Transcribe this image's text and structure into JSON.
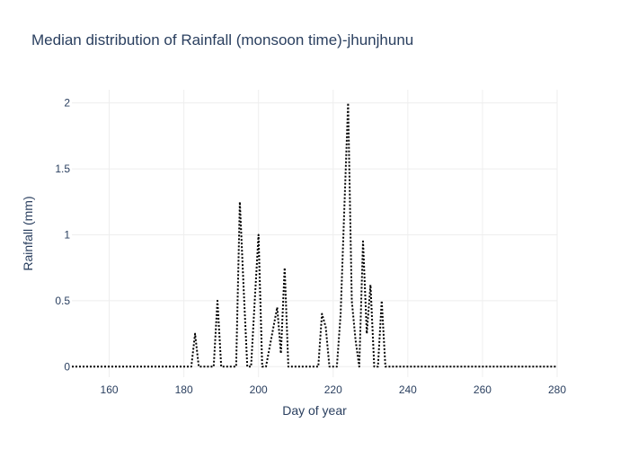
{
  "chart_data": {
    "type": "line",
    "title": "Median distribution of Rainfall (monsoon time)-jhunjhunu",
    "xlabel": "Day of year",
    "ylabel": "Rainfall (mm)",
    "xlim": [
      150,
      280
    ],
    "ylim": [
      -0.08,
      2.1
    ],
    "x_ticks": [
      {
        "value": 160,
        "label": "160"
      },
      {
        "value": 180,
        "label": "180"
      },
      {
        "value": 200,
        "label": "200"
      },
      {
        "value": 220,
        "label": "220"
      },
      {
        "value": 240,
        "label": "240"
      },
      {
        "value": 260,
        "label": "260"
      },
      {
        "value": 280,
        "label": "280"
      }
    ],
    "y_ticks": [
      {
        "value": 0,
        "label": "0"
      },
      {
        "value": 0.5,
        "label": "0.5"
      },
      {
        "value": 1,
        "label": "1"
      },
      {
        "value": 1.5,
        "label": "1.5"
      },
      {
        "value": 2,
        "label": "2"
      }
    ],
    "grid": true,
    "line_color": "#000000",
    "line_style": "dotted",
    "series": [
      {
        "x": [
          150,
          182,
          183,
          184,
          188,
          189,
          190,
          194,
          195,
          196,
          197,
          198,
          199,
          200,
          201,
          202,
          204,
          205,
          206,
          207,
          208,
          216,
          217,
          218,
          219,
          221,
          222,
          223,
          224,
          225,
          226,
          227,
          228,
          229,
          230,
          231,
          232,
          233,
          234,
          280
        ],
        "y": [
          0,
          0,
          0.25,
          0,
          0,
          0.5,
          0,
          0,
          1.25,
          0.6,
          0,
          0,
          0.5,
          1,
          0,
          0,
          0.3,
          0.45,
          0.1,
          0.75,
          0,
          0,
          0.4,
          0.3,
          0,
          0,
          0.4,
          1.2,
          2,
          0.5,
          0.2,
          0,
          0.95,
          0.25,
          0.62,
          0,
          0,
          0.5,
          0,
          0
        ]
      }
    ]
  }
}
